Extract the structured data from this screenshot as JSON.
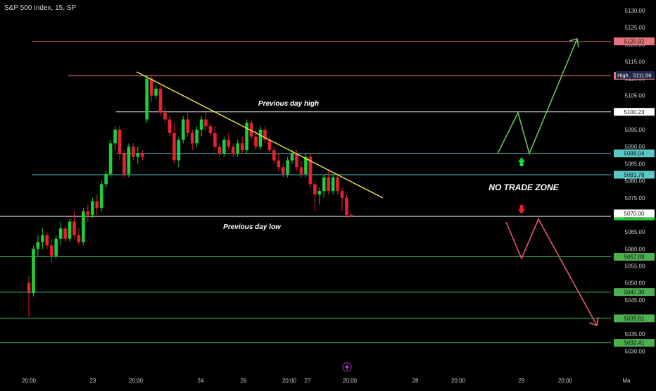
{
  "header": {
    "title": "S&P 500 Index, 15, SP"
  },
  "colors": {
    "background": "#000000",
    "up": "#1fcf38",
    "down": "#e8202f",
    "trendline": "#f5e64a",
    "level_red": "#e0626b",
    "level_white": "#e8e8e8",
    "level_cyan": "#46c3c8",
    "level_green": "#3fc66b",
    "arrow_up": "#66bf5e",
    "arrow_down": "#e45b6a",
    "axis_text": "#c9ccd3"
  },
  "chart_data": {
    "type": "candlestick",
    "ylim": [
      5028,
      5131
    ],
    "y_ticks": [
      5030,
      5035,
      5040,
      5045,
      5050,
      5055,
      5060,
      5065,
      5070,
      5075,
      5080,
      5085,
      5090,
      5095,
      5100,
      5105,
      5110,
      5115,
      5120,
      5125,
      5130
    ],
    "x_ticks": [
      "20:00",
      "23",
      "20:00",
      "24",
      "20:00",
      "26",
      "20:00",
      "27",
      "20:00",
      "28",
      "20:00",
      "29",
      "20:00",
      "Ma"
    ],
    "levels": [
      {
        "label": "5120.92",
        "value": 5120.92,
        "color": "level_red",
        "badge": "#e5757d",
        "extent": "right"
      },
      {
        "label": "5110.82",
        "value": 5110.82,
        "color": "level_red",
        "badge": "#e5757d",
        "extent": "right"
      },
      {
        "label": "5100.23",
        "value": 5100.23,
        "color": "level_white",
        "badge": "#ffffff",
        "extent": "right"
      },
      {
        "label": "5088.04",
        "value": 5088.04,
        "color": "level_cyan",
        "badge": "#5cc8c6",
        "extent": "right"
      },
      {
        "label": "5081.78",
        "value": 5081.78,
        "color": "level_cyan",
        "badge": "#5cc8c6",
        "extent": "right"
      },
      {
        "label": "5069.54",
        "value": 5069.54,
        "color": "level_white",
        "badge": "#29d13f",
        "extent": "full"
      },
      {
        "label": "5057.69",
        "value": 5057.69,
        "color": "level_green",
        "badge": "#4caf50",
        "extent": "full"
      },
      {
        "label": "5047.30",
        "value": 5047.3,
        "color": "level_green",
        "badge": "#4caf50",
        "extent": "full"
      },
      {
        "label": "5039.61",
        "value": 5039.61,
        "color": "level_green",
        "badge": "#4caf50",
        "extent": "full"
      },
      {
        "label": "5032.41",
        "value": 5032.41,
        "color": "level_green",
        "badge": "#4caf50",
        "extent": "full"
      }
    ],
    "high_marker": {
      "tag": "High",
      "value": 5111.06,
      "label": "5111.06"
    },
    "close_marker": {
      "value": 5070.0,
      "label": "5070.00"
    },
    "annotations": {
      "prev_day_high": "Previous day high",
      "prev_day_low": "Previous day low",
      "no_trade_zone": "NO TRADE ZONE"
    },
    "candles": [
      [
        5050,
        5052,
        5040,
        5047
      ],
      [
        5047,
        5061,
        5046,
        5060
      ],
      [
        5060,
        5064,
        5058,
        5062
      ],
      [
        5062,
        5066,
        5060,
        5064
      ],
      [
        5064,
        5065,
        5060,
        5061
      ],
      [
        5061,
        5063,
        5056,
        5058
      ],
      [
        5058,
        5064,
        5057,
        5063
      ],
      [
        5063,
        5068,
        5061,
        5066
      ],
      [
        5066,
        5067,
        5062,
        5063
      ],
      [
        5063,
        5069,
        5062,
        5068
      ],
      [
        5068,
        5071,
        5063,
        5064
      ],
      [
        5064,
        5066,
        5061,
        5062
      ],
      [
        5062,
        5072,
        5061,
        5071
      ],
      [
        5071,
        5073,
        5068,
        5070
      ],
      [
        5070,
        5075,
        5069,
        5074
      ],
      [
        5074,
        5076,
        5070,
        5072
      ],
      [
        5072,
        5080,
        5071,
        5079
      ],
      [
        5079,
        5083,
        5078,
        5082
      ],
      [
        5082,
        5092,
        5081,
        5091
      ],
      [
        5091,
        5096,
        5089,
        5095
      ],
      [
        5095,
        5096,
        5086,
        5088
      ],
      [
        5088,
        5089,
        5081,
        5082
      ],
      [
        5082,
        5091,
        5081,
        5090
      ],
      [
        5090,
        5091,
        5086,
        5087
      ],
      [
        5087,
        5090,
        5085,
        5088
      ],
      [
        5088,
        5089,
        5086,
        5087
      ],
      [
        5098,
        5111,
        5097,
        5110
      ],
      [
        5110,
        5111,
        5103,
        5105
      ],
      [
        5105,
        5108,
        5104,
        5107
      ],
      [
        5107,
        5108,
        5099,
        5100
      ],
      [
        5100,
        5102,
        5097,
        5098
      ],
      [
        5098,
        5099,
        5093,
        5094
      ],
      [
        5094,
        5097,
        5085,
        5086
      ],
      [
        5086,
        5093,
        5084,
        5092
      ],
      [
        5092,
        5099,
        5091,
        5098
      ],
      [
        5098,
        5100,
        5093,
        5094
      ],
      [
        5094,
        5095,
        5089,
        5091
      ],
      [
        5091,
        5096,
        5090,
        5095
      ],
      [
        5095,
        5099,
        5093,
        5098
      ],
      [
        5098,
        5100,
        5095,
        5096
      ],
      [
        5096,
        5097,
        5093,
        5094
      ],
      [
        5094,
        5096,
        5089,
        5090
      ],
      [
        5090,
        5091,
        5087,
        5088
      ],
      [
        5088,
        5093,
        5087,
        5092
      ],
      [
        5092,
        5094,
        5089,
        5090
      ],
      [
        5090,
        5091,
        5087,
        5088
      ],
      [
        5088,
        5092,
        5087,
        5091
      ],
      [
        5091,
        5093,
        5088,
        5089
      ],
      [
        5089,
        5098,
        5088,
        5097
      ],
      [
        5097,
        5098,
        5092,
        5093
      ],
      [
        5093,
        5095,
        5089,
        5090
      ],
      [
        5090,
        5096,
        5089,
        5095
      ],
      [
        5095,
        5096,
        5091,
        5092
      ],
      [
        5092,
        5093,
        5088,
        5089
      ],
      [
        5089,
        5090,
        5085,
        5086
      ],
      [
        5086,
        5088,
        5083,
        5084
      ],
      [
        5084,
        5085,
        5081,
        5082
      ],
      [
        5082,
        5087,
        5081,
        5086
      ],
      [
        5086,
        5089,
        5085,
        5088
      ],
      [
        5088,
        5089,
        5083,
        5084
      ],
      [
        5084,
        5086,
        5081,
        5082
      ],
      [
        5082,
        5088,
        5081,
        5087
      ],
      [
        5087,
        5088,
        5078,
        5079
      ],
      [
        5079,
        5080,
        5071,
        5076
      ],
      [
        5076,
        5078,
        5073,
        5077
      ],
      [
        5077,
        5082,
        5075,
        5081
      ],
      [
        5081,
        5083,
        5076,
        5077
      ],
      [
        5077,
        5082,
        5076,
        5081
      ],
      [
        5081,
        5082,
        5076,
        5077
      ],
      [
        5077,
        5078,
        5071,
        5075
      ],
      [
        5075,
        5076,
        5069,
        5070
      ],
      [
        5070,
        5070.5,
        5069.3,
        5069.54
      ]
    ]
  }
}
